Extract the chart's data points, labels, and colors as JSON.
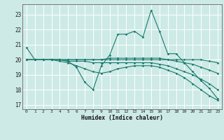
{
  "xlabel": "Humidex (Indice chaleur)",
  "bg_color": "#cdeae6",
  "grid_color": "#ffffff",
  "line_color": "#1a7a6e",
  "xlim": [
    -0.5,
    23.5
  ],
  "ylim": [
    16.7,
    23.7
  ],
  "yticks": [
    17,
    18,
    19,
    20,
    21,
    22,
    23
  ],
  "xticks": [
    0,
    1,
    2,
    3,
    4,
    5,
    6,
    7,
    8,
    9,
    10,
    11,
    12,
    13,
    14,
    15,
    16,
    17,
    18,
    19,
    20,
    21,
    22,
    23
  ],
  "lines": [
    [
      20.8,
      20.0,
      20.0,
      20.0,
      20.0,
      19.9,
      19.5,
      18.5,
      18.0,
      19.6,
      20.3,
      21.7,
      21.7,
      21.9,
      21.5,
      23.3,
      21.9,
      20.4,
      20.4,
      19.8,
      19.2,
      18.6,
      18.1,
      17.4
    ],
    [
      20.0,
      20.0,
      20.0,
      20.0,
      20.0,
      20.0,
      20.0,
      20.0,
      20.0,
      20.0,
      20.0,
      20.0,
      20.0,
      20.0,
      20.0,
      20.0,
      20.0,
      20.0,
      20.0,
      20.0,
      20.0,
      20.0,
      19.9,
      19.8
    ],
    [
      20.0,
      20.0,
      20.0,
      20.0,
      20.0,
      20.0,
      20.0,
      20.0,
      20.0,
      20.0,
      20.1,
      20.1,
      20.1,
      20.1,
      20.1,
      20.1,
      20.1,
      20.0,
      19.9,
      19.8,
      19.7,
      19.5,
      19.3,
      19.1
    ],
    [
      20.0,
      20.0,
      20.0,
      20.0,
      20.0,
      19.9,
      19.9,
      19.9,
      19.8,
      19.8,
      19.8,
      19.8,
      19.8,
      19.8,
      19.8,
      19.8,
      19.7,
      19.6,
      19.4,
      19.2,
      19.0,
      18.7,
      18.4,
      18.0
    ],
    [
      20.0,
      20.0,
      20.0,
      20.0,
      19.9,
      19.8,
      19.6,
      19.4,
      19.2,
      19.1,
      19.2,
      19.4,
      19.5,
      19.6,
      19.6,
      19.6,
      19.5,
      19.3,
      19.1,
      18.8,
      18.4,
      18.0,
      17.6,
      17.3
    ]
  ]
}
